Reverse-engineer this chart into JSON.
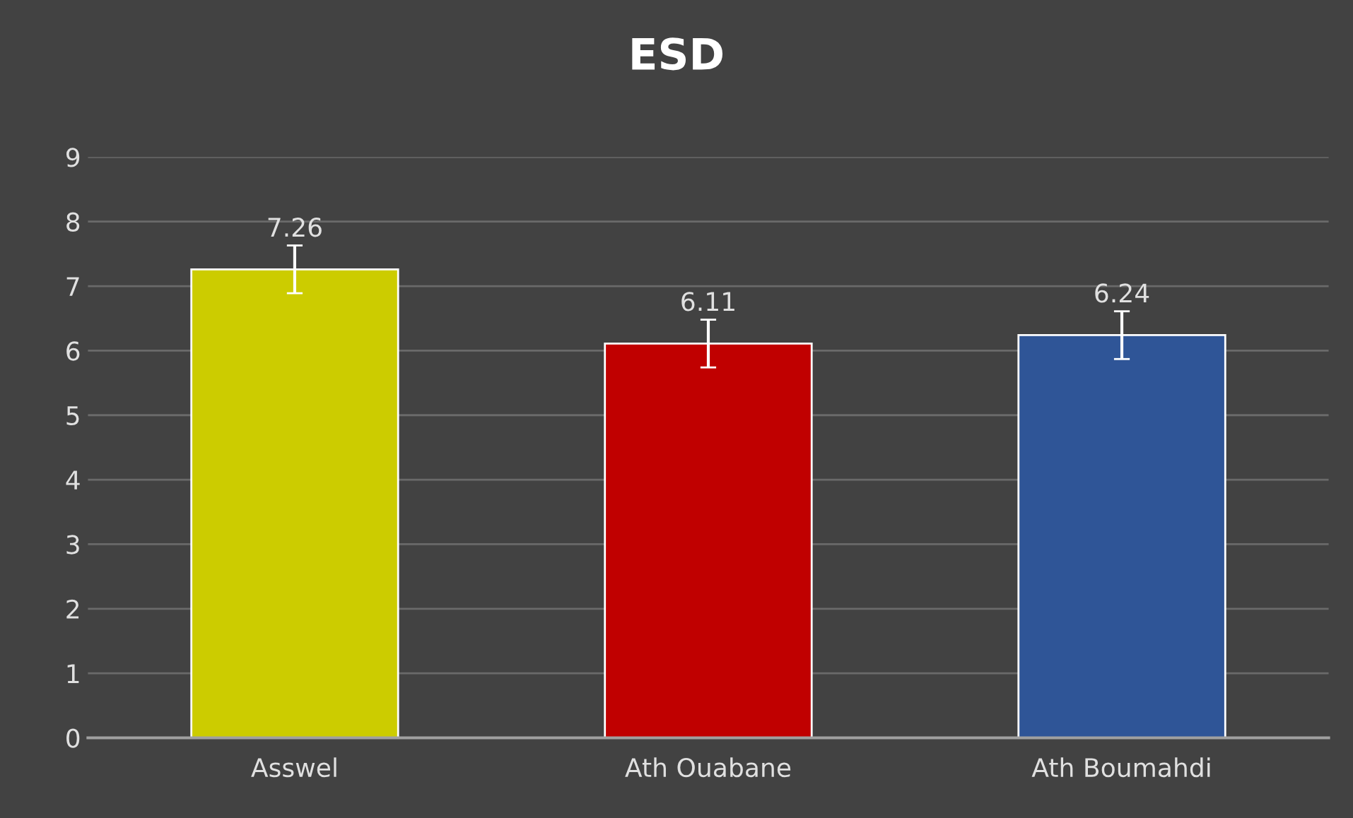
{
  "chart_data": {
    "type": "bar",
    "title": "ESD",
    "categories": [
      "Asswel",
      "Ath Ouabane",
      "Ath Boumahdi"
    ],
    "values": [
      7.26,
      6.11,
      6.24
    ],
    "colors": [
      "#cccc00",
      "#c00000",
      "#2f5597"
    ],
    "errors": [
      0.37,
      0.37,
      0.37
    ],
    "data_labels": true,
    "ylim": [
      0,
      9
    ],
    "yticks": [
      0,
      1,
      2,
      3,
      4,
      5,
      6,
      7,
      8,
      9
    ],
    "grid": "y"
  }
}
